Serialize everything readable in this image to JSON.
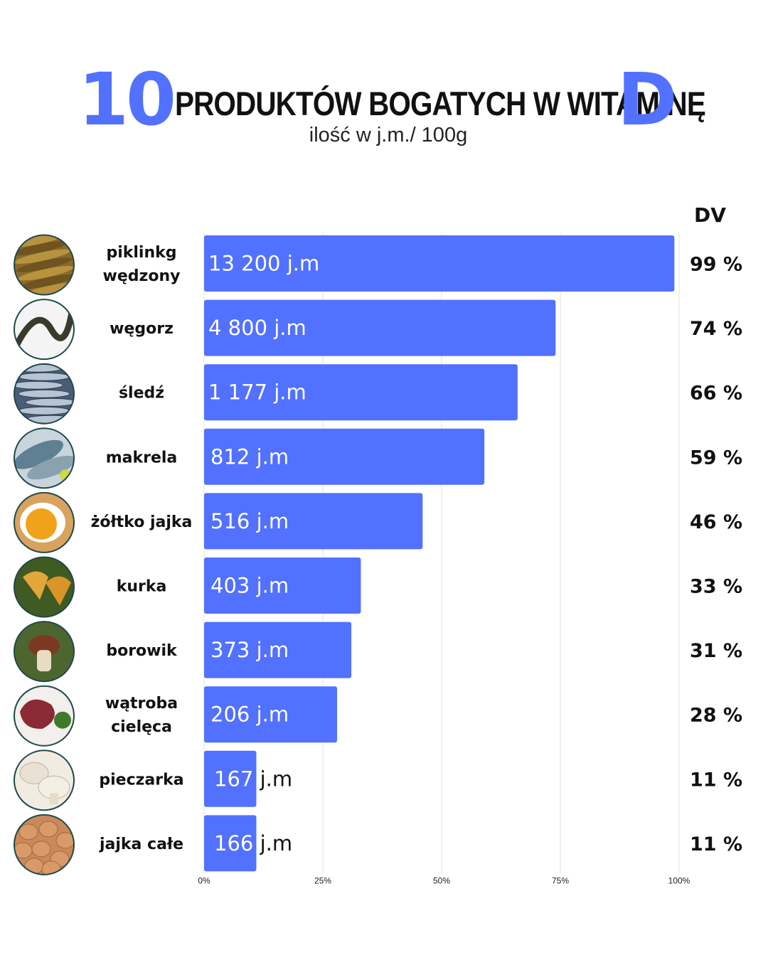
{
  "header": {
    "number": "10",
    "title": "PRODUKTÓW BOGATYCH W WITAMINĘ",
    "letter": "D",
    "subtitle": "ilość w j.m./ 100g"
  },
  "dv_header": "DV",
  "colors": {
    "accent": "#5271ff",
    "bar": "#5271ff",
    "text": "#111111",
    "grid": "#e2e2e2",
    "icon_ring": "#1e4a4a"
  },
  "chart_data": {
    "type": "bar",
    "orientation": "horizontal",
    "xlim": [
      0,
      100
    ],
    "x_ticks": [
      "0%",
      "25%",
      "50%",
      "75%",
      "100%"
    ],
    "grid": true,
    "categories": [
      "piklinkg wędzony",
      "węgorz",
      "śledź",
      "makrela",
      "żółtko jajka",
      "kurka",
      "borowik",
      "wątroba cielęca",
      "pieczarka",
      "jajka całe"
    ],
    "category_lines": [
      [
        "piklinkg",
        "wędzony"
      ],
      [
        "węgorz"
      ],
      [
        "śledź"
      ],
      [
        "makrela"
      ],
      [
        "żółtko jajka"
      ],
      [
        "kurka"
      ],
      [
        "borowik"
      ],
      [
        "wątroba",
        "cielęca"
      ],
      [
        "pieczarka"
      ],
      [
        "jajka całe"
      ]
    ],
    "values": [
      99,
      74,
      66,
      59,
      46,
      33,
      31,
      28,
      11,
      11
    ],
    "bar_labels": [
      "13 200 j.m",
      "4 800 j.m",
      "1 177 j.m",
      "812 j.m",
      "516 j.m",
      "403 j.m",
      "373 j.m",
      "206 j.m",
      "167 j.m",
      "166 j.m"
    ],
    "dv_labels": [
      "99 %",
      "74 %",
      "66 %",
      "59 %",
      "46 %",
      "33 %",
      "31 %",
      "28 %",
      "11 %",
      "11 %"
    ],
    "icons": [
      "smoked-fish-icon",
      "eel-icon",
      "herring-icon",
      "mackerel-icon",
      "egg-yolk-icon",
      "chanterelle-icon",
      "porcini-icon",
      "veal-liver-icon",
      "champignon-icon",
      "eggs-icon"
    ]
  }
}
